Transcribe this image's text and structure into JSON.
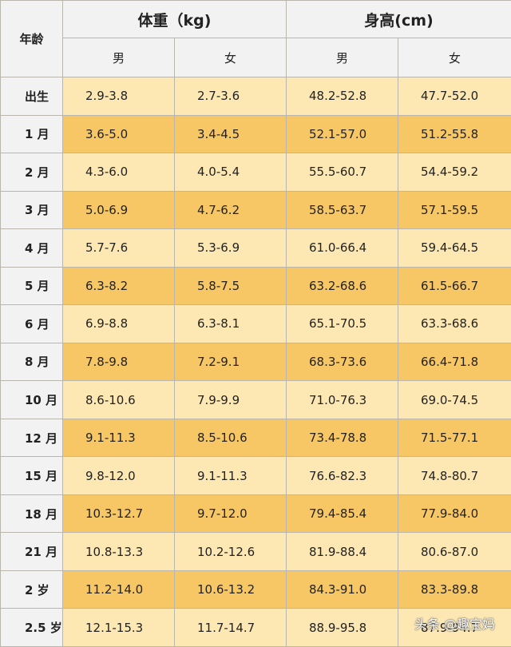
{
  "table": {
    "age_header": "年龄",
    "weight_header": "体重（kg)",
    "height_header": "身高(cm)",
    "sub_headers": [
      "男",
      "女",
      "男",
      "女"
    ],
    "rows": [
      {
        "age": "出生",
        "w_m": "2.9-3.8",
        "w_f": "2.7-3.6",
        "h_m": "48.2-52.8",
        "h_f": "47.7-52.0"
      },
      {
        "age": "1 月",
        "w_m": "3.6-5.0",
        "w_f": "3.4-4.5",
        "h_m": "52.1-57.0",
        "h_f": "51.2-55.8"
      },
      {
        "age": "2 月",
        "w_m": "4.3-6.0",
        "w_f": "4.0-5.4",
        "h_m": "55.5-60.7",
        "h_f": "54.4-59.2"
      },
      {
        "age": "3 月",
        "w_m": "5.0-6.9",
        "w_f": "4.7-6.2",
        "h_m": "58.5-63.7",
        "h_f": "57.1-59.5"
      },
      {
        "age": "4 月",
        "w_m": "5.7-7.6",
        "w_f": "5.3-6.9",
        "h_m": "61.0-66.4",
        "h_f": "59.4-64.5"
      },
      {
        "age": "5 月",
        "w_m": "6.3-8.2",
        "w_f": "5.8-7.5",
        "h_m": "63.2-68.6",
        "h_f": "61.5-66.7"
      },
      {
        "age": "6 月",
        "w_m": "6.9-8.8",
        "w_f": "6.3-8.1",
        "h_m": "65.1-70.5",
        "h_f": "63.3-68.6"
      },
      {
        "age": "8 月",
        "w_m": "7.8-9.8",
        "w_f": "7.2-9.1",
        "h_m": "68.3-73.6",
        "h_f": "66.4-71.8"
      },
      {
        "age": "10 月",
        "w_m": "8.6-10.6",
        "w_f": "7.9-9.9",
        "h_m": "71.0-76.3",
        "h_f": "69.0-74.5"
      },
      {
        "age": "12 月",
        "w_m": "9.1-11.3",
        "w_f": "8.5-10.6",
        "h_m": "73.4-78.8",
        "h_f": "71.5-77.1"
      },
      {
        "age": "15 月",
        "w_m": "9.8-12.0",
        "w_f": "9.1-11.3",
        "h_m": "76.6-82.3",
        "h_f": "74.8-80.7"
      },
      {
        "age": "18 月",
        "w_m": "10.3-12.7",
        "w_f": "9.7-12.0",
        "h_m": "79.4-85.4",
        "h_f": "77.9-84.0"
      },
      {
        "age": "21 月",
        "w_m": "10.8-13.3",
        "w_f": "10.2-12.6",
        "h_m": "81.9-88.4",
        "h_f": "80.6-87.0"
      },
      {
        "age": "2 岁",
        "w_m": "11.2-14.0",
        "w_f": "10.6-13.2",
        "h_m": "84.3-91.0",
        "h_f": "83.3-89.8"
      },
      {
        "age": "2.5 岁",
        "w_m": "12.1-15.3",
        "w_f": "11.7-14.7",
        "h_m": "88.9-95.8",
        "h_f": "87.9-94.7"
      }
    ]
  },
  "watermark": "头条 @趣宝妈",
  "colors": {
    "header_bg": "#f2f2f2",
    "row_light": "#fde8b3",
    "row_dark": "#f8c765",
    "border": "#b9b6ae"
  }
}
